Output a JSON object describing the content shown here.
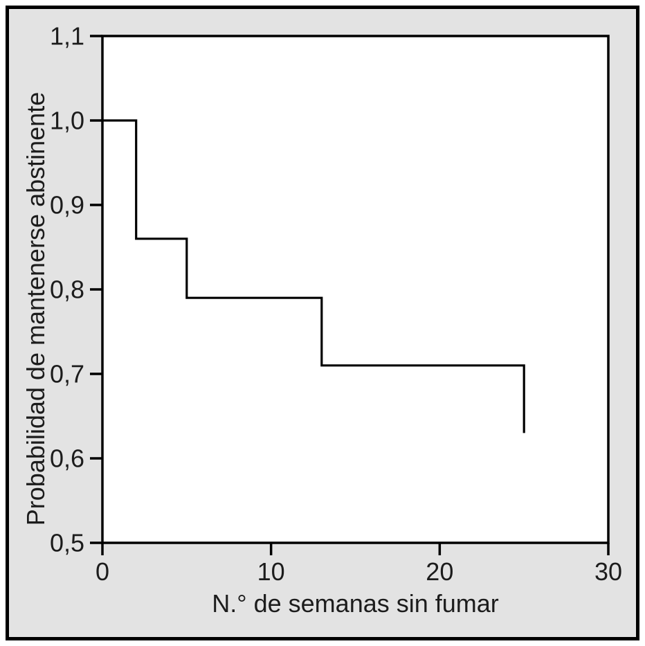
{
  "figure": {
    "outer_background": "#ffffff",
    "panel_background": "#e3e3e3",
    "frame_color": "#000000",
    "plot_background": "#ffffff",
    "axis_color": "#000000",
    "text_color": "#1c1c1c"
  },
  "chart_data": {
    "type": "line",
    "style": "kaplan-meier-step",
    "title": "",
    "xlabel": "N.° de semanas sin fumar",
    "ylabel": "Probabilidad de mantenerse abstinente",
    "xlim": [
      0,
      30
    ],
    "ylim": [
      0.5,
      1.1
    ],
    "xticks": {
      "values": [
        0,
        10,
        20,
        30
      ],
      "labels": [
        "0",
        "10",
        "20",
        "30"
      ]
    },
    "yticks": {
      "values": [
        0.5,
        0.6,
        0.7,
        0.8,
        0.9,
        1.0,
        1.1
      ],
      "labels": [
        "0,5",
        "0,6",
        "0,7",
        "0,8",
        "0,9",
        "1,0",
        "1,1"
      ]
    },
    "grid": false,
    "legend": false,
    "line_color": "#000000",
    "series": [
      {
        "name": "probabilidad-de-abstinencia",
        "step": true,
        "points": [
          {
            "x": 0,
            "y": 1.0
          },
          {
            "x": 2,
            "y": 1.0
          },
          {
            "x": 2,
            "y": 0.86
          },
          {
            "x": 5,
            "y": 0.86
          },
          {
            "x": 5,
            "y": 0.79
          },
          {
            "x": 13,
            "y": 0.79
          },
          {
            "x": 13,
            "y": 0.71
          },
          {
            "x": 25,
            "y": 0.71
          },
          {
            "x": 25,
            "y": 0.63
          }
        ]
      }
    ]
  }
}
